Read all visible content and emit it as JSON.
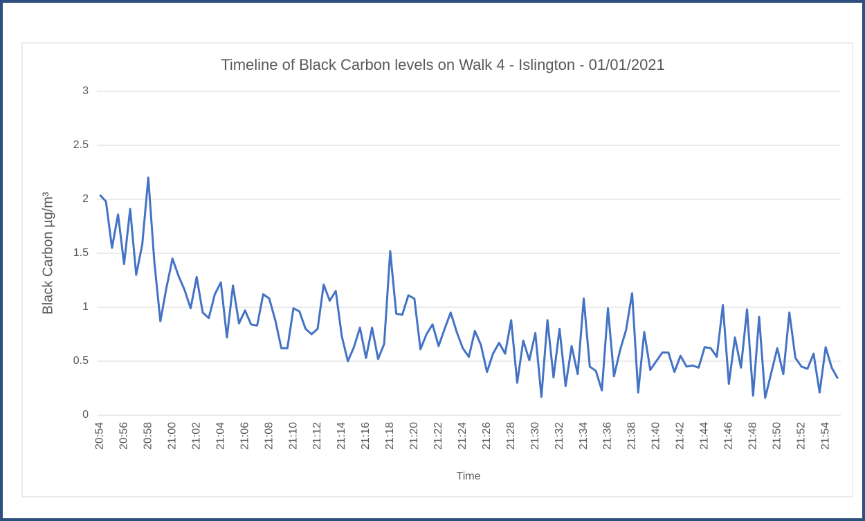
{
  "chart_data": {
    "type": "line",
    "title": "Timeline of Black Carbon levels on Walk 4 - Islington - 01/01/2021",
    "x_label": "Time",
    "y_label": "Black Carbon µg/m³",
    "categories": [
      "20:54",
      null,
      null,
      null,
      "20:56",
      null,
      null,
      null,
      "20:58",
      null,
      null,
      null,
      "21:00",
      null,
      null,
      null,
      "21:02",
      null,
      null,
      null,
      "21:04",
      null,
      null,
      null,
      "21:06",
      null,
      null,
      null,
      "21:08",
      null,
      null,
      null,
      "21:10",
      null,
      null,
      null,
      "21:12",
      null,
      null,
      null,
      "21:14",
      null,
      null,
      null,
      "21:16",
      null,
      null,
      null,
      "21:18",
      null,
      null,
      null,
      "21:20",
      null,
      null,
      null,
      "21:22",
      null,
      null,
      null,
      "21:24",
      null,
      null,
      null,
      "21:26",
      null,
      null,
      null,
      "21:28",
      null,
      null,
      null,
      "21:30",
      null,
      null,
      null,
      "21:32",
      null,
      null,
      null,
      "21:34",
      null,
      null,
      null,
      "21:36",
      null,
      null,
      null,
      "21:38",
      null,
      null,
      null,
      "21:40",
      null,
      null,
      null,
      "21:42",
      null,
      null,
      null,
      "21:44",
      null,
      null,
      null,
      "21:46",
      null,
      null,
      null,
      "21:48",
      null,
      null,
      null,
      "21:50",
      null,
      null,
      null,
      "21:52",
      null,
      null,
      null,
      "21:54",
      null,
      null
    ],
    "values": [
      2.04,
      1.98,
      1.55,
      1.86,
      1.4,
      1.91,
      1.3,
      1.58,
      2.2,
      1.42,
      0.87,
      1.18,
      1.45,
      1.29,
      1.16,
      0.99,
      1.28,
      0.95,
      0.9,
      1.12,
      1.23,
      0.72,
      1.2,
      0.85,
      0.97,
      0.84,
      0.83,
      1.12,
      1.08,
      0.88,
      0.62,
      0.62,
      0.99,
      0.96,
      0.8,
      0.75,
      0.8,
      1.21,
      1.06,
      1.15,
      0.73,
      0.5,
      0.63,
      0.81,
      0.53,
      0.81,
      0.52,
      0.66,
      1.52,
      0.94,
      0.93,
      1.11,
      1.08,
      0.61,
      0.75,
      0.84,
      0.64,
      0.8,
      0.95,
      0.77,
      0.62,
      0.54,
      0.78,
      0.65,
      0.4,
      0.57,
      0.67,
      0.57,
      0.88,
      0.3,
      0.69,
      0.51,
      0.76,
      0.17,
      0.88,
      0.35,
      0.8,
      0.27,
      0.64,
      0.38,
      1.08,
      0.45,
      0.41,
      0.23,
      0.99,
      0.36,
      0.6,
      0.79,
      1.13,
      0.21,
      0.77,
      0.42,
      0.5,
      0.58,
      0.58,
      0.4,
      0.55,
      0.45,
      0.46,
      0.44,
      0.63,
      0.62,
      0.54,
      1.02,
      0.29,
      0.72,
      0.44,
      0.98,
      0.18,
      0.91,
      0.16,
      0.39,
      0.62,
      0.38,
      0.95,
      0.53,
      0.45,
      0.43,
      0.57,
      0.21,
      0.63,
      0.44,
      0.34
    ],
    "color": "#4472c4",
    "ylim": [
      0,
      3
    ],
    "yticks": [
      0,
      0.5,
      1,
      1.5,
      2,
      2.5,
      3
    ],
    "grid": true
  }
}
